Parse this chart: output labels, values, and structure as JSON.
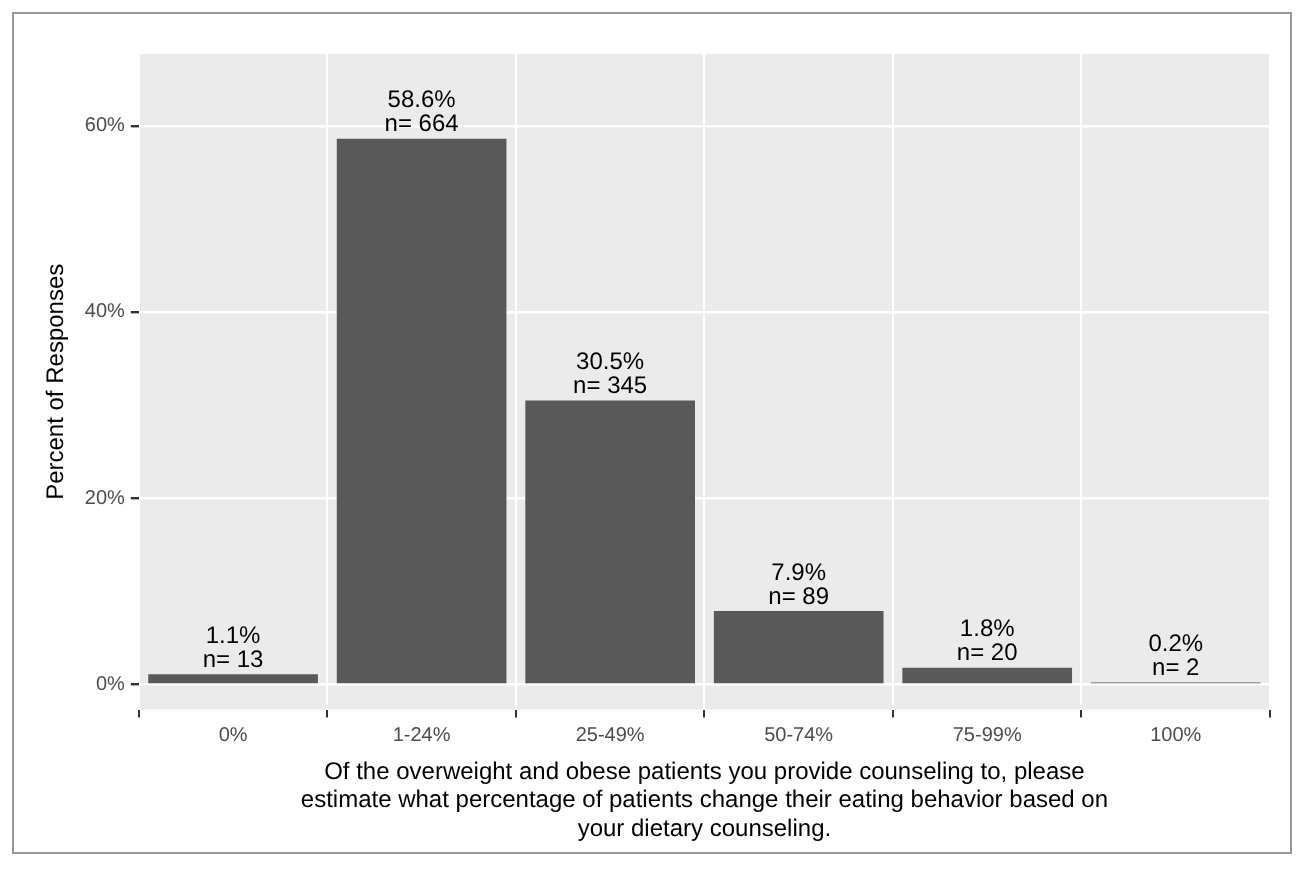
{
  "chart_data": {
    "type": "bar",
    "categories": [
      "0%",
      "1-24%",
      "25-49%",
      "50-74%",
      "75-99%",
      "100%"
    ],
    "values": [
      1.1,
      58.6,
      30.5,
      7.9,
      1.8,
      0.2
    ],
    "color": "#595959",
    "value_labels": [
      "1.1%\nn= 13",
      "58.6%\nn= 664",
      "30.5%\nn= 345",
      "7.9%\nn= 89",
      "1.8%\nn= 20",
      "0.2%\nn= 2"
    ],
    "ylabel": "Percent of Responses",
    "xlabel": "Of the overweight and obese patients you provide counseling to, please estimate what percentage of patients change their eating behavior based on your dietary counseling.",
    "ylim": [
      -2.7,
      67.7
    ],
    "yticks": [
      {
        "value": 0,
        "label": "0%"
      },
      {
        "value": 20,
        "label": "20%"
      },
      {
        "value": 40,
        "label": "40%"
      },
      {
        "value": 60,
        "label": "60%"
      }
    ],
    "grid": true,
    "legend": false
  }
}
